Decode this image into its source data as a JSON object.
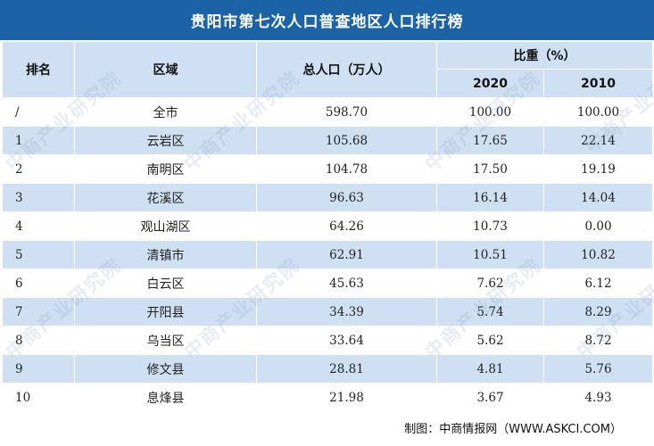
{
  "title": "贵阳市第七次人口普查地区人口排行榜",
  "headers": {
    "rank": "排名",
    "region": "区域",
    "population": "总人口（万人）",
    "share": "比重（%）",
    "year_2020": "2020",
    "year_2010": "2010"
  },
  "rows": [
    {
      "rank": "/",
      "region": "全市",
      "population": "598.70",
      "share_2020": "100.00",
      "share_2010": "100.00"
    },
    {
      "rank": "1",
      "region": "云岩区",
      "population": "105.68",
      "share_2020": "17.65",
      "share_2010": "22.14"
    },
    {
      "rank": "2",
      "region": "南明区",
      "population": "104.78",
      "share_2020": "17.50",
      "share_2010": "19.19"
    },
    {
      "rank": "3",
      "region": "花溪区",
      "population": "96.63",
      "share_2020": "16.14",
      "share_2010": "14.04"
    },
    {
      "rank": "4",
      "region": "观山湖区",
      "population": "64.26",
      "share_2020": "10.73",
      "share_2010": "0.00"
    },
    {
      "rank": "5",
      "region": "清镇市",
      "population": "62.91",
      "share_2020": "10.51",
      "share_2010": "10.82"
    },
    {
      "rank": "6",
      "region": "白云区",
      "population": "45.63",
      "share_2020": "7.62",
      "share_2010": "6.12"
    },
    {
      "rank": "7",
      "region": "开阳县",
      "population": "34.39",
      "share_2020": "5.74",
      "share_2010": "8.29"
    },
    {
      "rank": "8",
      "region": "乌当区",
      "population": "33.64",
      "share_2020": "5.62",
      "share_2010": "8.72"
    },
    {
      "rank": "9",
      "region": "修文县",
      "population": "28.81",
      "share_2020": "4.81",
      "share_2010": "5.76"
    },
    {
      "rank": "10",
      "region": "息烽县",
      "population": "21.98",
      "share_2020": "3.67",
      "share_2010": "4.93"
    }
  ],
  "footer": "制图：中商情报网（WWW.ASKCI.COM）",
  "watermark": "中商产业研究院",
  "colors": {
    "title_bg": "#1c62a6",
    "header_bg": "#cfe0f2",
    "stripe": "#cfe0f2"
  }
}
